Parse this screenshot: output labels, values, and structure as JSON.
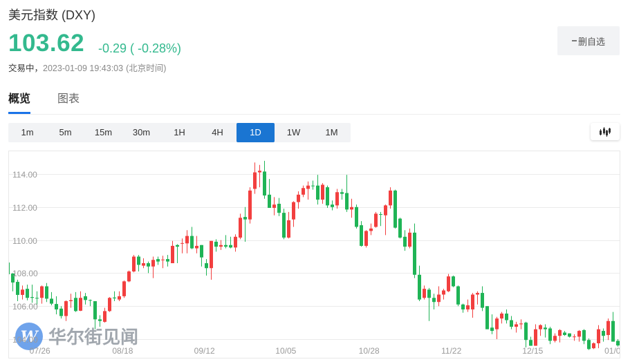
{
  "header": {
    "title": "美元指数 (DXY)",
    "price": "103.62",
    "change": "-0.29",
    "change_pct_display": "( -0.28%)",
    "status_state": "交易中，",
    "status_timestamp": "2023-01-09 19:43:03",
    "status_timezone": "(北京时间)",
    "price_color": "#33b98e"
  },
  "watchlist_button": {
    "icon": "minus-icon",
    "label": "删自选"
  },
  "tabs": [
    {
      "label": "概览",
      "active": true
    },
    {
      "label": "图表",
      "active": false
    }
  ],
  "periods": [
    {
      "label": "1m",
      "active": false
    },
    {
      "label": "5m",
      "active": false
    },
    {
      "label": "15m",
      "active": false
    },
    {
      "label": "30m",
      "active": false
    },
    {
      "label": "1H",
      "active": false
    },
    {
      "label": "4H",
      "active": false
    },
    {
      "label": "1D",
      "active": true
    },
    {
      "label": "1W",
      "active": false
    },
    {
      "label": "1M",
      "active": false
    }
  ],
  "chart_type_button": {
    "icon": "candlestick-icon"
  },
  "watermark": {
    "text": "华尔街见闻",
    "logo_letter": "W",
    "logo_color": "#4f8fe6"
  },
  "chart_data": {
    "type": "candlestick",
    "title": "",
    "xlabel": "",
    "ylabel": "",
    "ylim": [
      102.83,
      115.42
    ],
    "grid": true,
    "legend": "none",
    "colors": {
      "up": "#f23f3f",
      "down": "#1fb456"
    },
    "yticks": [
      114,
      112,
      110,
      108,
      106,
      104
    ],
    "ytick_labels": [
      "114.00",
      "112.00",
      "110.00",
      "108.00",
      "106.00",
      "104.00"
    ],
    "xticks": [
      "07/26",
      "08/18",
      "09/12",
      "10/05",
      "10/28",
      "11/22",
      "12/15",
      "01/0"
    ],
    "xtick_index": [
      6.6,
      23.7,
      40.6,
      57.4,
      74.6,
      91.6,
      108.4,
      124.9
    ],
    "ohlc_fields": [
      "open",
      "high",
      "low",
      "close"
    ],
    "candles": [
      [
        108.64,
        108.7,
        107.9,
        107.93
      ],
      [
        107.97,
        108.0,
        106.9,
        107.43
      ],
      [
        107.47,
        107.6,
        106.3,
        106.68
      ],
      [
        106.68,
        107.25,
        106.4,
        107.0
      ],
      [
        107.05,
        107.3,
        106.35,
        106.5
      ],
      [
        106.55,
        107.3,
        106.2,
        106.5
      ],
      [
        106.5,
        106.9,
        106.1,
        106.46
      ],
      [
        106.5,
        107.25,
        106.15,
        107.2
      ],
      [
        107.2,
        107.4,
        106.25,
        106.45
      ],
      [
        106.45,
        106.85,
        106.05,
        106.15
      ],
      [
        106.13,
        106.6,
        105.5,
        105.8
      ],
      [
        105.85,
        106.0,
        105.25,
        105.4
      ],
      [
        105.4,
        106.35,
        105.1,
        106.3
      ],
      [
        106.3,
        106.75,
        105.9,
        106.36
      ],
      [
        106.5,
        106.85,
        105.65,
        105.7
      ],
      [
        105.72,
        106.9,
        105.7,
        106.5
      ],
      [
        106.6,
        106.8,
        106.1,
        106.37
      ],
      [
        106.37,
        106.4,
        106.0,
        106.33
      ],
      [
        106.3,
        106.3,
        104.6,
        105.2
      ],
      [
        105.2,
        105.45,
        104.75,
        105.1
      ],
      [
        105.05,
        105.9,
        105.0,
        105.7
      ],
      [
        105.7,
        106.55,
        105.65,
        106.5
      ],
      [
        106.52,
        106.9,
        106.3,
        106.47
      ],
      [
        106.4,
        106.9,
        106.3,
        106.6
      ],
      [
        106.6,
        107.55,
        106.5,
        107.5
      ],
      [
        107.5,
        108.15,
        107.45,
        108.1
      ],
      [
        108.1,
        109.1,
        108.05,
        109.0
      ],
      [
        109.0,
        109.1,
        108.1,
        108.5
      ],
      [
        108.45,
        108.9,
        108.3,
        108.6
      ],
      [
        108.6,
        108.7,
        108.0,
        108.4
      ],
      [
        108.4,
        109.0,
        107.7,
        108.8
      ],
      [
        108.85,
        109.0,
        108.5,
        108.7
      ],
      [
        108.78,
        109.05,
        108.3,
        108.82
      ],
      [
        108.85,
        109.1,
        108.4,
        108.7
      ],
      [
        108.6,
        109.95,
        108.6,
        109.65
      ],
      [
        109.7,
        109.75,
        108.6,
        109.6
      ],
      [
        109.78,
        110.1,
        109.2,
        109.82
      ],
      [
        109.8,
        110.6,
        109.2,
        110.25
      ],
      [
        110.25,
        110.8,
        109.45,
        109.5
      ],
      [
        109.5,
        110.25,
        109.2,
        109.65
      ],
      [
        109.7,
        109.7,
        108.4,
        108.95
      ],
      [
        108.6,
        108.85,
        107.85,
        108.3
      ],
      [
        108.3,
        109.95,
        107.6,
        109.95
      ],
      [
        109.9,
        110.05,
        109.3,
        109.6
      ],
      [
        109.6,
        110.0,
        109.4,
        109.7
      ],
      [
        109.7,
        110.3,
        109.5,
        109.6
      ],
      [
        109.7,
        110.2,
        109.5,
        109.55
      ],
      [
        109.55,
        110.35,
        109.3,
        110.2
      ],
      [
        110.15,
        111.6,
        110.05,
        111.35
      ],
      [
        111.4,
        112.0,
        109.9,
        111.25
      ],
      [
        111.25,
        113.2,
        111.0,
        113.0
      ],
      [
        113.1,
        114.7,
        112.8,
        114.1
      ],
      [
        114.1,
        114.55,
        113.2,
        114.2
      ],
      [
        114.15,
        114.8,
        112.5,
        112.7
      ],
      [
        112.75,
        113.7,
        111.95,
        111.95
      ],
      [
        111.95,
        112.6,
        111.5,
        112.15
      ],
      [
        112.2,
        112.55,
        111.45,
        111.65
      ],
      [
        111.65,
        111.9,
        110.05,
        110.15
      ],
      [
        110.15,
        111.7,
        110.1,
        111.2
      ],
      [
        111.25,
        112.35,
        110.8,
        112.3
      ],
      [
        112.3,
        112.95,
        111.9,
        112.75
      ],
      [
        112.75,
        113.3,
        112.6,
        113.15
      ],
      [
        113.1,
        113.55,
        112.45,
        113.3
      ],
      [
        113.3,
        113.6,
        113.05,
        113.28
      ],
      [
        113.3,
        113.95,
        112.15,
        112.45
      ],
      [
        112.45,
        113.45,
        112.2,
        113.35
      ],
      [
        113.2,
        113.3,
        111.95,
        112.1
      ],
      [
        112.15,
        112.4,
        111.8,
        112.0
      ],
      [
        112.1,
        113.1,
        111.9,
        112.9
      ],
      [
        112.9,
        113.1,
        112.45,
        112.8
      ],
      [
        112.85,
        113.95,
        111.7,
        111.85
      ],
      [
        111.85,
        112.5,
        111.35,
        112.0
      ],
      [
        112.0,
        112.15,
        110.7,
        110.8
      ],
      [
        110.9,
        111.15,
        109.6,
        109.65
      ],
      [
        109.65,
        110.6,
        109.55,
        110.55
      ],
      [
        110.55,
        111.0,
        110.3,
        110.7
      ],
      [
        110.8,
        111.7,
        110.75,
        111.6
      ],
      [
        111.57,
        111.7,
        110.85,
        111.53
      ],
      [
        111.5,
        112.15,
        110.3,
        112.1
      ],
      [
        112.1,
        113.2,
        111.9,
        113.0
      ],
      [
        113.0,
        113.05,
        110.7,
        110.75
      ],
      [
        111.3,
        111.35,
        110.1,
        110.15
      ],
      [
        110.2,
        110.6,
        109.35,
        109.6
      ],
      [
        109.6,
        110.7,
        109.5,
        110.45
      ],
      [
        110.45,
        111.0,
        107.7,
        107.9
      ],
      [
        107.9,
        108.45,
        106.3,
        106.4
      ],
      [
        106.5,
        107.25,
        106.4,
        107.05
      ],
      [
        107.0,
        107.1,
        105.1,
        106.5
      ],
      [
        106.5,
        106.75,
        105.8,
        106.25
      ],
      [
        106.25,
        107.2,
        106.0,
        106.7
      ],
      [
        106.7,
        107.05,
        106.4,
        106.95
      ],
      [
        106.9,
        107.95,
        106.85,
        107.8
      ],
      [
        107.8,
        107.85,
        107.15,
        107.2
      ],
      [
        107.2,
        107.25,
        106.0,
        106.1
      ],
      [
        106.1,
        106.15,
        105.6,
        105.8
      ],
      [
        105.8,
        106.4,
        105.65,
        106.05
      ],
      [
        105.8,
        106.8,
        105.3,
        106.7
      ],
      [
        106.7,
        106.9,
        106.1,
        106.8
      ],
      [
        106.8,
        107.2,
        105.7,
        105.9
      ],
      [
        106.0,
        106.0,
        104.6,
        104.6
      ],
      [
        104.7,
        105.5,
        104.3,
        104.5
      ],
      [
        104.6,
        105.35,
        104.0,
        105.25
      ],
      [
        105.25,
        105.65,
        104.95,
        105.55
      ],
      [
        105.55,
        105.8,
        104.95,
        105.15
      ],
      [
        105.15,
        105.4,
        104.6,
        104.75
      ],
      [
        104.75,
        105.05,
        104.4,
        104.9
      ],
      [
        104.9,
        105.2,
        104.6,
        104.95
      ],
      [
        105.0,
        105.05,
        103.5,
        103.95
      ],
      [
        103.95,
        104.15,
        103.6,
        103.6
      ],
      [
        103.6,
        104.9,
        103.6,
        104.6
      ],
      [
        104.6,
        104.9,
        104.2,
        104.85
      ],
      [
        104.7,
        104.9,
        104.1,
        104.6
      ],
      [
        104.65,
        104.75,
        103.7,
        103.9
      ],
      [
        103.9,
        104.35,
        103.8,
        104.2
      ],
      [
        104.2,
        104.6,
        103.8,
        104.55
      ],
      [
        104.4,
        104.5,
        104.2,
        104.25
      ],
      [
        104.35,
        104.35,
        104.1,
        104.15
      ],
      [
        104.14,
        104.3,
        103.9,
        104.16
      ],
      [
        104.15,
        104.55,
        103.85,
        104.5
      ],
      [
        104.55,
        104.6,
        103.7,
        103.9
      ],
      [
        103.95,
        104.05,
        103.35,
        103.4
      ],
      [
        103.45,
        103.8,
        103.4,
        103.75
      ],
      [
        103.75,
        104.85,
        103.45,
        104.6
      ],
      [
        104.5,
        104.65,
        103.85,
        104.2
      ],
      [
        104.25,
        105.25,
        103.95,
        105.1
      ],
      [
        105.1,
        105.65,
        103.85,
        103.85
      ],
      [
        103.9,
        104.0,
        103.55,
        103.62
      ]
    ]
  }
}
